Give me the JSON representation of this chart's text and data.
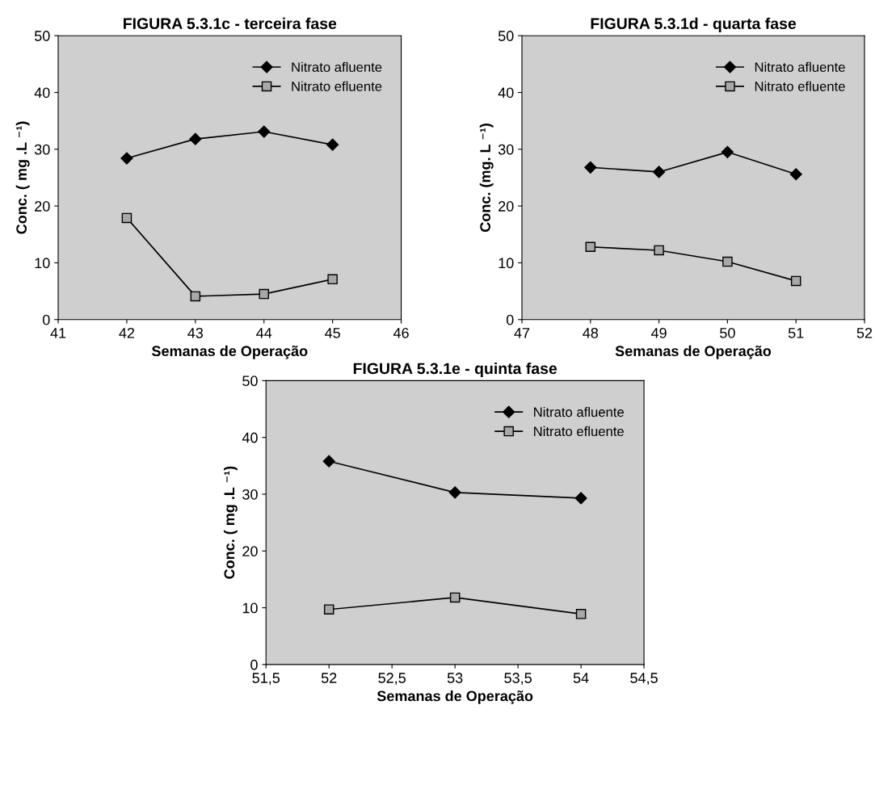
{
  "chart_data": [
    {
      "type": "line",
      "title": "FIGURA 5.3.1c - terceira fase",
      "xlabel": "Semanas de Operação",
      "ylabel": "Conc. ( mg .L ⁻¹)",
      "x": [
        42,
        43,
        44,
        45
      ],
      "xlim": [
        41,
        46
      ],
      "xticks": [
        41,
        42,
        43,
        44,
        45,
        46
      ],
      "ylim": [
        0,
        50
      ],
      "yticks": [
        0,
        10,
        20,
        30,
        40,
        50
      ],
      "grid": false,
      "legend": "top right",
      "series": [
        {
          "name": "Nitrato afluente",
          "color": "#000000",
          "marker": "diamond",
          "values": [
            28.4,
            31.8,
            33.1,
            30.8
          ]
        },
        {
          "name": "Nitrato efluente",
          "color": "#000000",
          "marker": "square",
          "values": [
            17.9,
            4.1,
            4.5,
            7.1
          ]
        }
      ]
    },
    {
      "type": "line",
      "title": "FIGURA 5.3.1d - quarta fase",
      "xlabel": "Semanas de Operação",
      "ylabel": "Conc. (mg. L ⁻¹)",
      "x": [
        48,
        49,
        50,
        51
      ],
      "xlim": [
        47,
        52
      ],
      "xticks": [
        47,
        48,
        49,
        50,
        51,
        52
      ],
      "ylim": [
        0,
        50
      ],
      "yticks": [
        0,
        10,
        20,
        30,
        40,
        50
      ],
      "grid": false,
      "legend": "top right",
      "series": [
        {
          "name": "Nitrato afluente",
          "color": "#000000",
          "marker": "diamond",
          "values": [
            26.8,
            26.0,
            29.5,
            25.6
          ]
        },
        {
          "name": "Nitrato efluente",
          "color": "#000000",
          "marker": "square",
          "values": [
            12.8,
            12.2,
            10.2,
            6.8
          ]
        }
      ]
    },
    {
      "type": "line",
      "title": "FIGURA 5.3.1e - quinta fase",
      "xlabel": "Semanas de Operação",
      "ylabel": "Conc. ( mg .L ⁻¹)",
      "x": [
        52,
        53,
        54
      ],
      "xlim": [
        51.5,
        54.5
      ],
      "xticks": [
        {
          "value": 51.5,
          "label": "51,5"
        },
        52,
        {
          "value": 52.5,
          "label": "52,5"
        },
        53,
        {
          "value": 53.5,
          "label": "53,5"
        },
        54,
        {
          "value": 54.5,
          "label": "54,5"
        }
      ],
      "ylim": [
        0,
        50
      ],
      "yticks": [
        0,
        10,
        20,
        30,
        40,
        50
      ],
      "grid": false,
      "legend": "top right",
      "series": [
        {
          "name": "Nitrato afluente",
          "color": "#000000",
          "marker": "diamond",
          "values": [
            35.8,
            30.3,
            29.3
          ]
        },
        {
          "name": "Nitrato efluente",
          "color": "#000000",
          "marker": "square",
          "values": [
            9.7,
            11.8,
            8.9
          ]
        }
      ]
    }
  ]
}
